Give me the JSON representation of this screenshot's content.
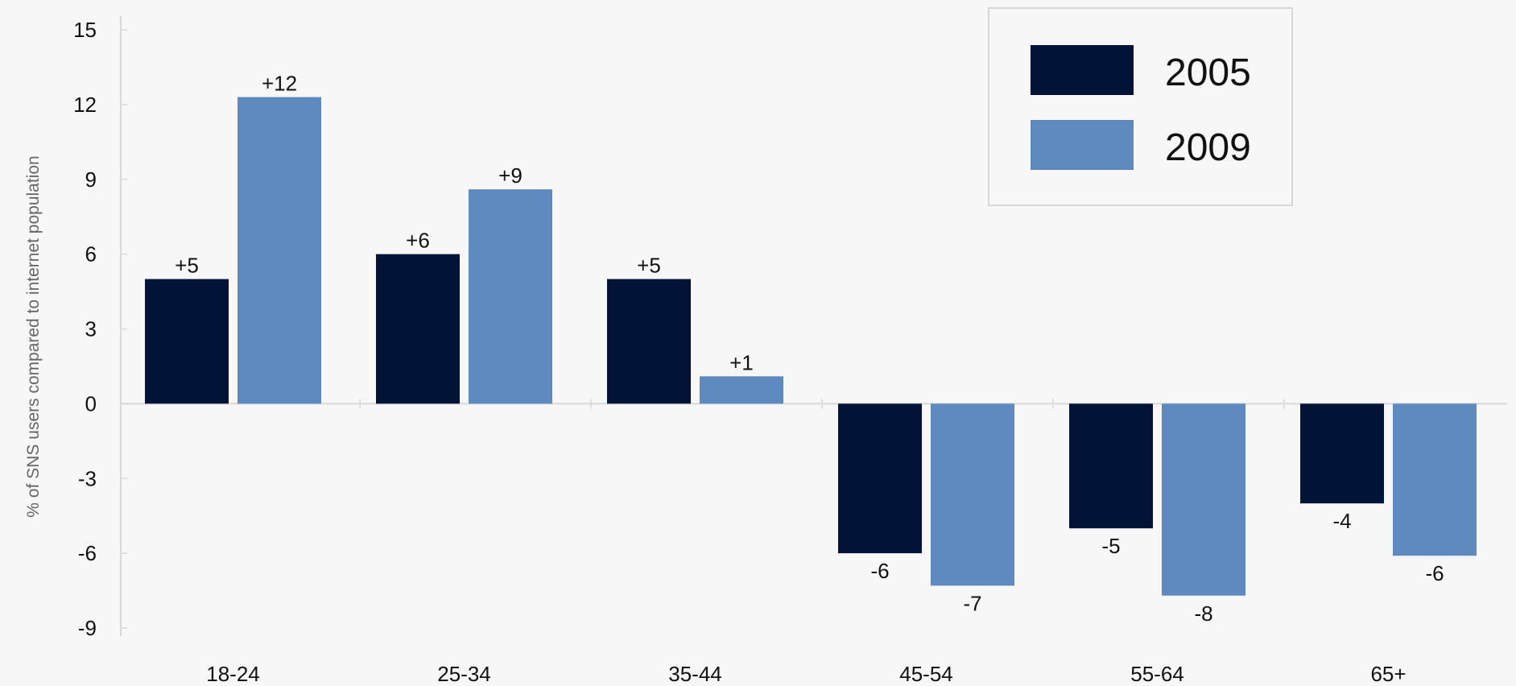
{
  "chart_data": {
    "type": "bar",
    "title": "",
    "xlabel": "",
    "ylabel": "% of SNS users compared to internet population",
    "categories": [
      "18-24",
      "25-34",
      "35-44",
      "45-54",
      "55-64",
      "65+"
    ],
    "series": [
      {
        "name": "2005",
        "color": "#021338",
        "values": [
          5,
          6,
          5,
          -6,
          -5,
          -4
        ],
        "labels": [
          "+5",
          "+6",
          "+5",
          "-6",
          "-5",
          "-4"
        ]
      },
      {
        "name": "2009",
        "color": "#5f8abf",
        "values": [
          12.3,
          8.6,
          1.1,
          -7.3,
          -7.7,
          -6.1
        ],
        "labels": [
          "+12",
          "+9",
          "+1",
          "-7",
          "-8",
          "-6"
        ]
      }
    ],
    "ylim": [
      -9,
      15
    ],
    "yticks": [
      15,
      12,
      9,
      6,
      3,
      0,
      -3,
      -6,
      -9
    ],
    "grid": false,
    "legend": "top-right"
  }
}
